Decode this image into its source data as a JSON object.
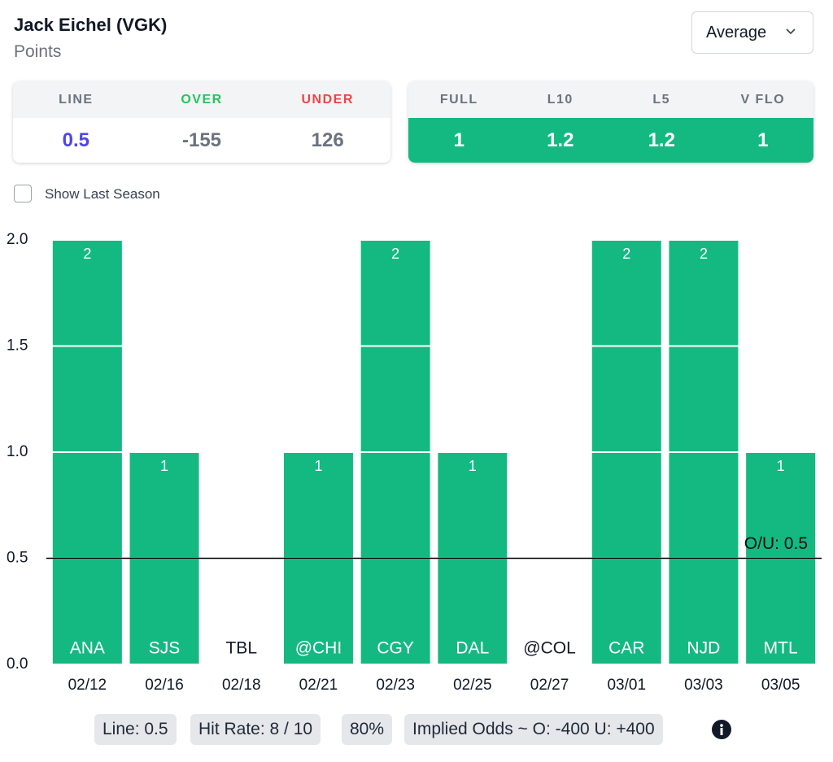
{
  "header": {
    "player": "Jack Eichel (VGK)",
    "stat": "Points",
    "dropdown": "Average"
  },
  "line_card": {
    "headers": [
      "LINE",
      "OVER",
      "UNDER"
    ],
    "values": [
      0.5,
      -155,
      126
    ]
  },
  "avg_card": {
    "headers": [
      "FULL",
      "L10",
      "L5",
      "V FLO"
    ],
    "values": [
      1,
      1.2,
      1.2,
      1
    ]
  },
  "checkbox_label": "Show Last Season",
  "chart_data": {
    "type": "bar",
    "categories": [
      "02/12",
      "02/16",
      "02/18",
      "02/21",
      "02/23",
      "02/25",
      "02/27",
      "03/01",
      "03/03",
      "03/05"
    ],
    "opponents": [
      "ANA",
      "SJS",
      "TBL",
      "@CHI",
      "CGY",
      "DAL",
      "@COL",
      "CAR",
      "NJD",
      "MTL"
    ],
    "values": [
      2,
      1,
      0,
      1,
      2,
      1,
      0,
      2,
      2,
      1
    ],
    "color": "#14b981",
    "ylim": [
      0,
      2
    ],
    "yticks": [
      {
        "value": 0,
        "label": "0.0"
      },
      {
        "value": 0.5,
        "label": "0.5"
      },
      {
        "value": 1,
        "label": "1.0"
      },
      {
        "value": 1.5,
        "label": "1.5"
      },
      {
        "value": 2,
        "label": "2.0"
      }
    ],
    "ou_line": 0.5,
    "ou_label": "O/U: 0.5",
    "grid": true
  },
  "footer": {
    "line": "Line: 0.5",
    "hit_rate": "Hit Rate: 8 / 10",
    "percent": "80%",
    "implied": "Implied Odds ~ O: -400 U: +400"
  }
}
